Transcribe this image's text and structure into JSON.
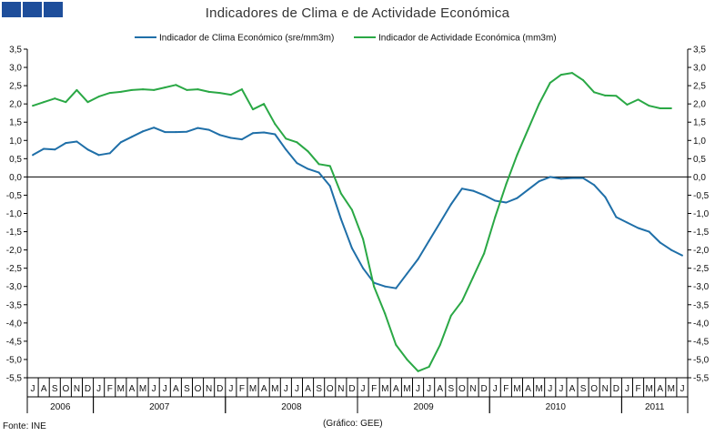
{
  "header": {
    "logo_squares": 3,
    "logo_color": "#1e4e9b"
  },
  "chart_data": {
    "type": "line",
    "title": "Indicadores de Clima e de Actividade Económica",
    "source": "Fonte: INE",
    "credit": "(Gráfico: GEE)",
    "ylim": [
      -5.5,
      3.5
    ],
    "y_ticks": [
      "3,5",
      "3,0",
      "2,5",
      "2,0",
      "1,5",
      "1,0",
      "0,5",
      "0,0",
      "-0,5",
      "-1,0",
      "-1,5",
      "-2,0",
      "-2,5",
      "-3,0",
      "-3,5",
      "-4,0",
      "-4,5",
      "-5,0",
      "-5,5"
    ],
    "grid": false,
    "legend": "top-center",
    "month_labels": [
      "J",
      "A",
      "S",
      "O",
      "N",
      "D",
      "J",
      "F",
      "M",
      "A",
      "M",
      "J",
      "J",
      "A",
      "S",
      "O",
      "N",
      "D",
      "J",
      "F",
      "M",
      "A",
      "M",
      "J",
      "J",
      "A",
      "S",
      "O",
      "N",
      "D",
      "J",
      "F",
      "M",
      "A",
      "M",
      "J",
      "J",
      "A",
      "S",
      "O",
      "N",
      "D",
      "J",
      "F",
      "M",
      "A",
      "M",
      "J",
      "J",
      "A",
      "S",
      "O",
      "N",
      "D",
      "J",
      "F",
      "M",
      "A",
      "M",
      "J"
    ],
    "years": [
      {
        "label": "2006",
        "start": 0,
        "count": 6
      },
      {
        "label": "2007",
        "start": 6,
        "count": 12
      },
      {
        "label": "2008",
        "start": 18,
        "count": 12
      },
      {
        "label": "2009",
        "start": 30,
        "count": 12
      },
      {
        "label": "2010",
        "start": 42,
        "count": 12
      },
      {
        "label": "2011",
        "start": 54,
        "count": 6
      }
    ],
    "series": [
      {
        "name": "Indicador de Clima Económico (sre/mm3m)",
        "color": "#1f6fa8",
        "values": [
          0.6,
          0.77,
          0.75,
          0.93,
          0.97,
          0.75,
          0.6,
          0.65,
          0.95,
          1.1,
          1.25,
          1.35,
          1.23,
          1.23,
          1.24,
          1.34,
          1.29,
          1.15,
          1.07,
          1.03,
          1.2,
          1.22,
          1.17,
          0.75,
          0.38,
          0.22,
          0.12,
          -0.25,
          -1.15,
          -1.95,
          -2.5,
          -2.9,
          -3.0,
          -3.05,
          -2.65,
          -2.25,
          -1.75,
          -1.25,
          -0.75,
          -0.32,
          -0.38,
          -0.5,
          -0.65,
          -0.7,
          -0.58,
          -0.35,
          -0.12,
          0.0,
          -0.05,
          -0.03,
          -0.03,
          -0.22,
          -0.55,
          -1.1,
          -1.25,
          -1.4,
          -1.5,
          -1.8,
          -2.0,
          -2.15
        ]
      },
      {
        "name": "Indicador de Actividade Económica (mm3m)",
        "color": "#2aa845",
        "values": [
          1.95,
          2.05,
          2.15,
          2.05,
          2.38,
          2.05,
          2.2,
          2.3,
          2.33,
          2.38,
          2.4,
          2.38,
          2.45,
          2.52,
          2.38,
          2.4,
          2.33,
          2.3,
          2.25,
          2.4,
          1.85,
          2.0,
          1.45,
          1.05,
          0.95,
          0.7,
          0.35,
          0.3,
          -0.45,
          -0.9,
          -1.7,
          -3.0,
          -3.75,
          -4.6,
          -5.0,
          -5.32,
          -5.2,
          -4.6,
          -3.8,
          -3.4,
          -2.75,
          -2.1,
          -1.1,
          -0.2,
          0.6,
          1.3,
          2.0,
          2.58,
          2.8,
          2.85,
          2.65,
          2.32,
          2.23,
          2.22,
          1.98,
          2.12,
          1.95,
          1.88,
          1.88
        ]
      }
    ]
  }
}
